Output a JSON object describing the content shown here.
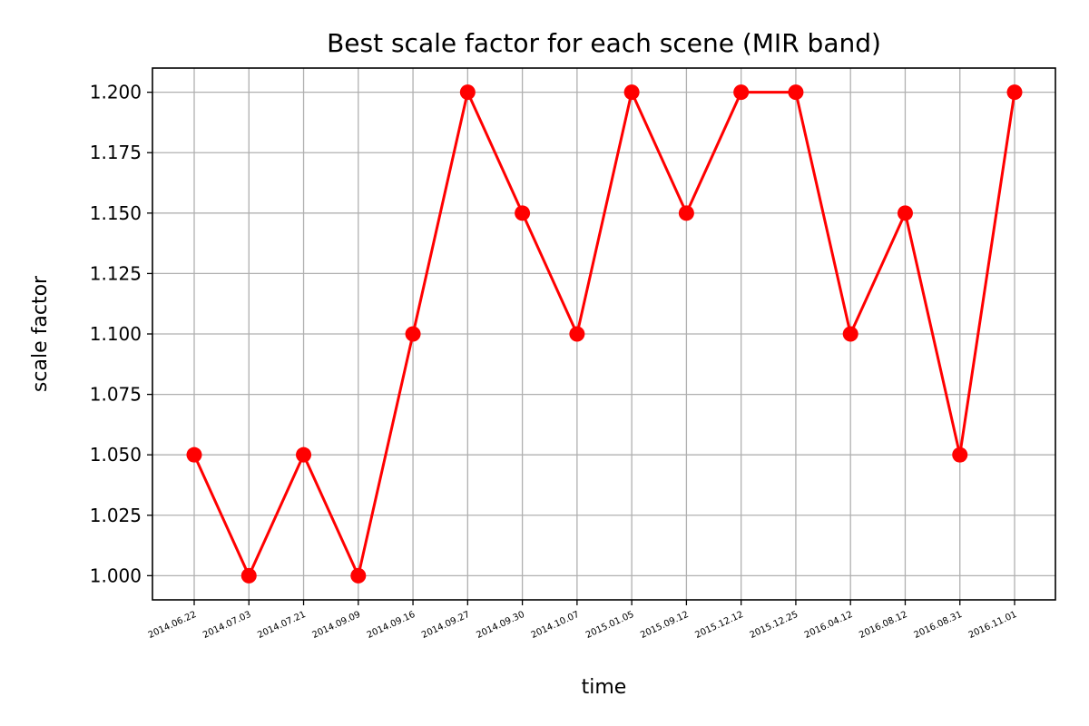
{
  "chart_data": {
    "type": "line",
    "title": "Best scale factor for each scene (MIR band)",
    "xlabel": "time",
    "ylabel": "scale factor",
    "categories": [
      "2014.06.22",
      "2014.07.03",
      "2014.07.21",
      "2014.09.09",
      "2014.09.16",
      "2014.09.27",
      "2014.09.30",
      "2014.10.07",
      "2015.01.05",
      "2015.09.12",
      "2015.12.12",
      "2015.12.25",
      "2016.04.12",
      "2016.08.12",
      "2016.08.31",
      "2016.11.01"
    ],
    "series": [
      {
        "values": [
          1.05,
          1.0,
          1.05,
          1.0,
          1.1,
          1.2,
          1.15,
          1.1,
          1.2,
          1.15,
          1.2,
          1.2,
          1.1,
          1.15,
          1.05,
          1.2
        ]
      }
    ],
    "ylim": [
      0.99,
      1.21
    ],
    "yticks": [
      1.0,
      1.025,
      1.05,
      1.075,
      1.1,
      1.125,
      1.15,
      1.175,
      1.2
    ],
    "ytick_labels": [
      "1.000",
      "1.025",
      "1.050",
      "1.075",
      "1.100",
      "1.125",
      "1.150",
      "1.175",
      "1.200"
    ],
    "grid": true,
    "line_color": "#ff0000",
    "marker_color": "#ff0000"
  }
}
